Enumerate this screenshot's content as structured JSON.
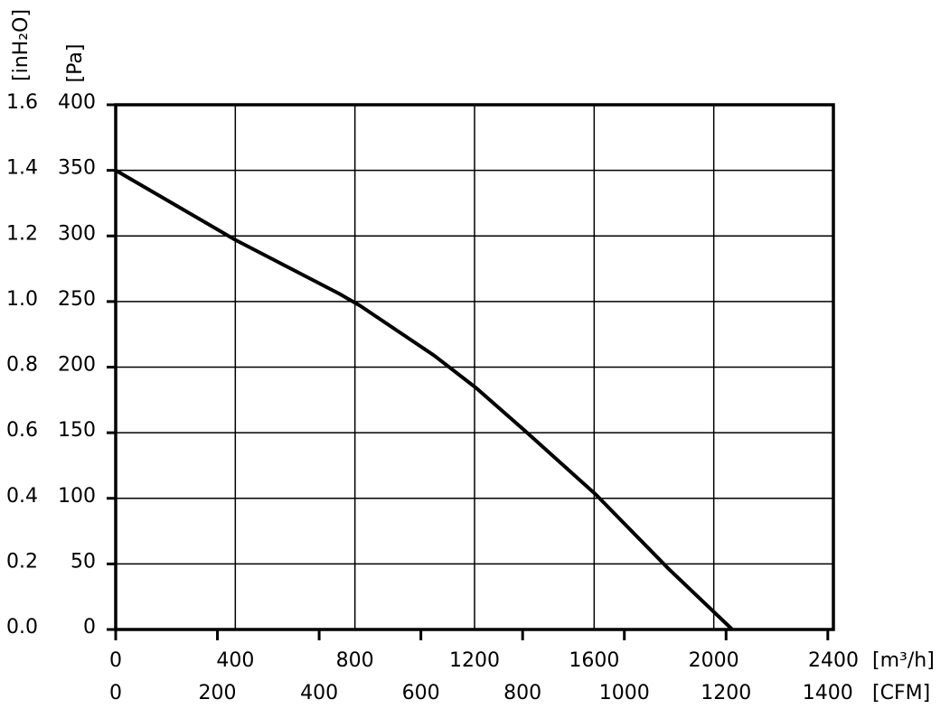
{
  "chart_data": {
    "type": "line",
    "color": "#000000",
    "x": [
      0,
      400,
      747,
      816,
      1064,
      1206,
      1366,
      1605,
      1850,
      2062
    ],
    "values": [
      350,
      297,
      256,
      247,
      209,
      184,
      152,
      103,
      46,
      0
    ],
    "xlim": [
      0,
      2400
    ],
    "xticks": [
      0,
      400,
      800,
      1200,
      1600,
      2000,
      2400
    ],
    "xlabel": "[m³/h]",
    "x2lim": [
      0,
      1411
    ],
    "x2ticks": [
      0,
      200,
      400,
      600,
      800,
      1000,
      1200,
      1400
    ],
    "x2label": "[CFM]",
    "ylim": [
      0,
      400
    ],
    "yticks": [
      0,
      50,
      100,
      150,
      200,
      250,
      300,
      350,
      400
    ],
    "ylabel": "[Pa]",
    "y2lim": [
      0,
      1.6
    ],
    "y2ticks": [
      {
        "value": 0,
        "label": "0.0"
      },
      0.2,
      0.4,
      0.6,
      0.8,
      {
        "value": 1,
        "label": "1.0"
      },
      1.2,
      1.4,
      1.6
    ],
    "y2label": "[inH₂O]",
    "grid": true
  }
}
